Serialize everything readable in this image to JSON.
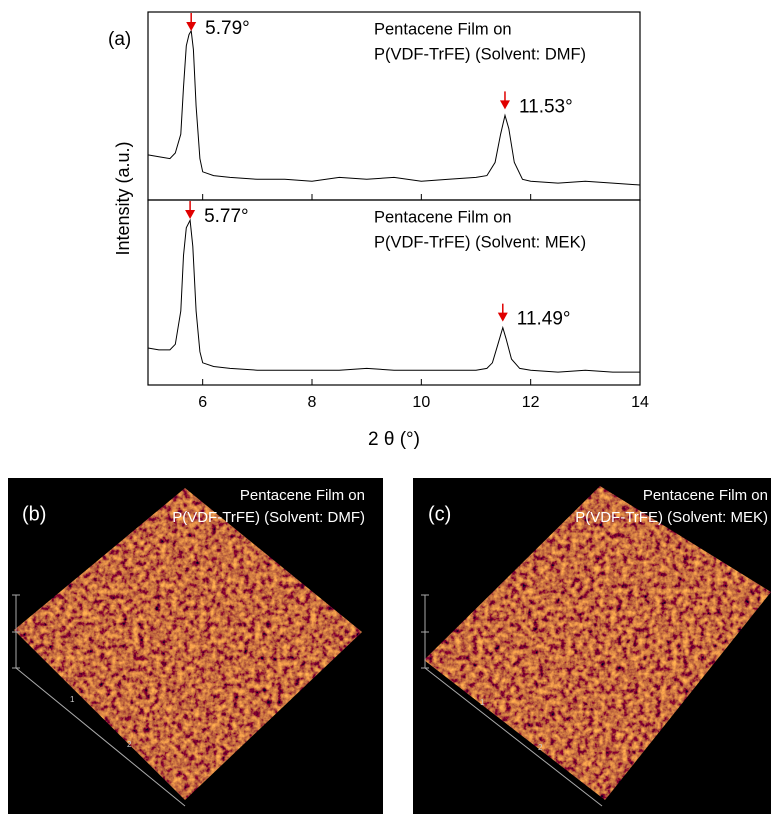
{
  "chart_data": [
    {
      "type": "line",
      "panel_label": "(a)",
      "ylabel": "Intensity (a.u.)",
      "note": [
        "Pentacene Film on",
        "P(VDF-TrFE) (Solvent: DMF)"
      ],
      "annotations": [
        {
          "x": 5.79,
          "label": "5.79°"
        },
        {
          "x": 11.53,
          "label": "11.53°"
        }
      ],
      "xlim": [
        5,
        14
      ],
      "ylim": [
        0,
        100
      ],
      "color": "#000000",
      "x": [
        5.0,
        5.2,
        5.4,
        5.5,
        5.6,
        5.65,
        5.7,
        5.75,
        5.79,
        5.83,
        5.88,
        5.95,
        6.0,
        6.2,
        6.5,
        7.0,
        7.5,
        8.0,
        8.5,
        9.0,
        9.5,
        10.0,
        10.5,
        11.0,
        11.2,
        11.35,
        11.45,
        11.53,
        11.6,
        11.7,
        11.85,
        12.0,
        12.5,
        13.0,
        13.5,
        14.0
      ],
      "values": [
        24,
        23,
        22,
        25,
        35,
        60,
        82,
        88,
        90,
        80,
        50,
        22,
        15,
        13,
        12,
        11,
        11,
        10,
        12,
        11,
        12,
        10,
        11,
        12,
        13,
        20,
        35,
        45,
        38,
        20,
        11,
        10,
        9,
        10,
        9,
        8
      ]
    },
    {
      "type": "line",
      "note": [
        "Pentacene Film on",
        "P(VDF-TrFE) (Solvent: MEK)"
      ],
      "annotations": [
        {
          "x": 5.77,
          "label": "5.77°"
        },
        {
          "x": 11.49,
          "label": "11.49°"
        }
      ],
      "xlim": [
        5,
        14
      ],
      "xticks": [
        6,
        8,
        10,
        12,
        14
      ],
      "xlabel": "2 θ (°)",
      "ylim": [
        0,
        100
      ],
      "color": "#000000",
      "x": [
        5.0,
        5.2,
        5.4,
        5.5,
        5.6,
        5.65,
        5.7,
        5.77,
        5.82,
        5.88,
        5.95,
        6.0,
        6.2,
        6.5,
        7.0,
        7.5,
        8.0,
        8.5,
        9.0,
        9.5,
        10.0,
        10.5,
        11.0,
        11.2,
        11.3,
        11.4,
        11.49,
        11.55,
        11.65,
        11.8,
        12.0,
        12.5,
        13.0,
        13.5,
        14.0
      ],
      "values": [
        20,
        19,
        19,
        22,
        40,
        70,
        85,
        89,
        75,
        40,
        18,
        12,
        10,
        9,
        8,
        8,
        8,
        8,
        9,
        8,
        8,
        8,
        8,
        9,
        12,
        22,
        31,
        25,
        14,
        9,
        8,
        7,
        8,
        7,
        7
      ]
    }
  ],
  "afm_panels": [
    {
      "label": "(b)",
      "note": [
        "Pentacene Film on",
        "P(VDF-TrFE) (Solvent: DMF)"
      ],
      "axis_labels": [
        "1",
        "2"
      ]
    },
    {
      "label": "(c)",
      "note": [
        "Pentacene Film on",
        "P(VDF-TrFE) (Solvent: MEK)"
      ],
      "axis_labels": [
        "1",
        "2"
      ]
    }
  ]
}
